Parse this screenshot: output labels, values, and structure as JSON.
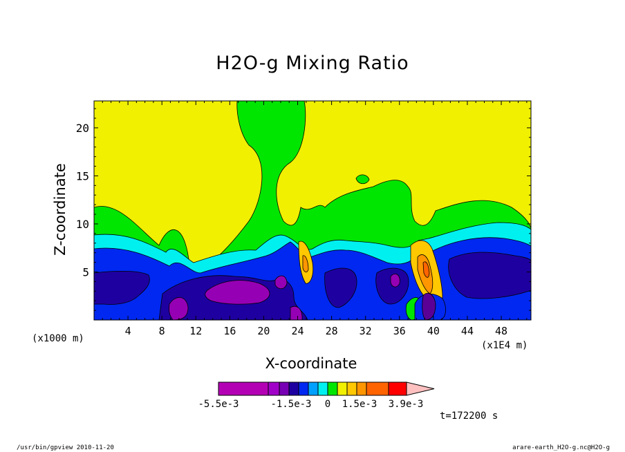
{
  "chart_data": {
    "type": "heatmap",
    "title": "H2O-g Mixing Ratio",
    "xlabel": "X-coordinate",
    "ylabel": "Z-coordinate",
    "x_unit_left": "(x1000 m)",
    "x_unit_right": "(x1E4 m)",
    "x_ticks": [
      "4",
      "8",
      "12",
      "16",
      "20",
      "24",
      "28",
      "32",
      "36",
      "40",
      "44",
      "48"
    ],
    "x_tick_values": [
      4,
      8,
      12,
      16,
      20,
      24,
      28,
      32,
      36,
      40,
      44,
      48
    ],
    "y_ticks": [
      "5",
      "10",
      "15",
      "20"
    ],
    "y_tick_values": [
      5,
      10,
      15,
      20
    ],
    "xlim": [
      0,
      51.5
    ],
    "ylim": [
      0,
      22.8
    ],
    "colorbar": {
      "tick_labels": [
        "-5.5e-3",
        "-1.5e-3",
        "0",
        "1.5e-3",
        "3.9e-3"
      ],
      "colors": [
        "#b400b4",
        "#a000c8",
        "#7800b4",
        "#1e00a0",
        "#0028f0",
        "#00a0ff",
        "#00f0f0",
        "#00e600",
        "#f0f000",
        "#ffc800",
        "#ff9600",
        "#ff6400",
        "#ff0000",
        "#ff7878",
        "#ffc0c0"
      ]
    },
    "colors": {
      "above": "#f0f000",
      "high": "#00e600",
      "mid": "#00f0f0",
      "low": "#0028f0",
      "lower": "#1e00a0",
      "lowest": "#9600b4",
      "pos1": "#ffc800",
      "pos2": "#ff9600",
      "pos3": "#ff6400",
      "deep": "#5a0096"
    },
    "time_label": "t=172200 s"
  },
  "footer": {
    "left": "/usr/bin/gpview  2010-11-20",
    "right": "arare-earth_H2O-g.nc@H2O-g"
  }
}
